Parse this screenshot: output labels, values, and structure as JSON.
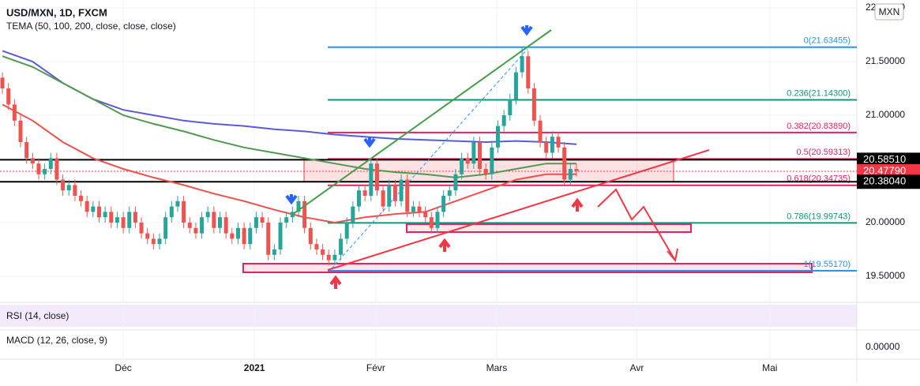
{
  "chart_data": {
    "type": "candlestick",
    "title": "USD/MXN, 1D, FXCM",
    "indicator_label": "TEMA (50, 100, 200, close, close, close)",
    "currency": "MXN",
    "rsi_label": "RSI (14, close)",
    "macd_label": "MACD (12, 26, close, 9)",
    "up_color": "#26a69a",
    "down_color": "#ef5350",
    "xlim": [
      -0.4,
      141.4
    ],
    "xticks": [
      {
        "value": 20,
        "label": "Déc"
      },
      {
        "value": 41.7,
        "label": "2021"
      },
      {
        "value": 61.8,
        "label": "Févr"
      },
      {
        "value": 81.8,
        "label": "Mars"
      },
      {
        "value": 105,
        "label": "Avr"
      },
      {
        "value": 127,
        "label": "Mai"
      }
    ],
    "ylim": [
      19.2647,
      22.0735
    ],
    "yticks": [
      {
        "value": 22,
        "label": "22.00000"
      },
      {
        "value": 21.5,
        "label": "21.50000"
      },
      {
        "value": 21,
        "label": "21.00000"
      },
      {
        "value": 20,
        "label": "20.00000"
      },
      {
        "value": 19.5,
        "label": "19.50000"
      }
    ],
    "macd_ticks": [
      {
        "value": 0,
        "label": "0.00000"
      }
    ],
    "grid": true,
    "candles": [
      [
        21.35,
        21.4,
        21.2,
        21.25
      ],
      [
        21.25,
        21.3,
        21.05,
        21.1
      ],
      [
        21.1,
        21.15,
        20.9,
        20.95
      ],
      [
        20.95,
        21.0,
        20.7,
        20.75
      ],
      [
        20.75,
        20.8,
        20.55,
        20.6
      ],
      [
        20.6,
        20.65,
        20.5,
        20.55
      ],
      [
        20.55,
        20.6,
        20.4,
        20.45
      ],
      [
        20.45,
        20.55,
        20.4,
        20.5
      ],
      [
        20.5,
        20.65,
        20.45,
        20.6
      ],
      [
        20.6,
        20.65,
        20.35,
        20.4
      ],
      [
        20.4,
        20.45,
        20.25,
        20.3
      ],
      [
        20.3,
        20.4,
        20.25,
        20.35
      ],
      [
        20.35,
        20.4,
        20.2,
        20.25
      ],
      [
        20.25,
        20.3,
        20.15,
        20.2
      ],
      [
        20.2,
        20.25,
        20.05,
        20.1
      ],
      [
        20.1,
        20.2,
        20.05,
        20.15
      ],
      [
        20.15,
        20.2,
        20.0,
        20.05
      ],
      [
        20.05,
        20.15,
        20.0,
        20.1
      ],
      [
        20.1,
        20.15,
        19.95,
        20.0
      ],
      [
        20.0,
        20.1,
        19.95,
        20.05
      ],
      [
        20.05,
        20.1,
        19.9,
        19.95
      ],
      [
        19.95,
        20.15,
        19.9,
        20.1
      ],
      [
        20.1,
        20.15,
        19.95,
        20.0
      ],
      [
        20.0,
        20.05,
        19.85,
        19.9
      ],
      [
        19.9,
        19.95,
        19.8,
        19.85
      ],
      [
        19.85,
        19.9,
        19.75,
        19.8
      ],
      [
        19.8,
        19.9,
        19.75,
        19.85
      ],
      [
        19.85,
        20.1,
        19.8,
        20.05
      ],
      [
        20.05,
        20.2,
        20.0,
        20.15
      ],
      [
        20.15,
        20.25,
        20.1,
        20.2
      ],
      [
        20.2,
        20.25,
        19.95,
        20.0
      ],
      [
        20.0,
        20.05,
        19.9,
        19.95
      ],
      [
        19.95,
        20.0,
        19.85,
        19.9
      ],
      [
        19.9,
        20.1,
        19.85,
        20.05
      ],
      [
        20.05,
        20.15,
        20.0,
        20.1
      ],
      [
        20.1,
        20.15,
        19.9,
        19.95
      ],
      [
        19.95,
        20.1,
        19.9,
        20.05
      ],
      [
        20.05,
        20.1,
        19.85,
        19.9
      ],
      [
        19.9,
        19.95,
        19.8,
        19.85
      ],
      [
        19.85,
        20.0,
        19.8,
        19.95
      ],
      [
        19.95,
        20.0,
        19.75,
        19.8
      ],
      [
        19.8,
        20.0,
        19.75,
        19.95
      ],
      [
        19.95,
        20.1,
        19.9,
        20.05
      ],
      [
        20.05,
        20.1,
        19.95,
        20.0
      ],
      [
        20.0,
        20.05,
        19.65,
        19.7
      ],
      [
        19.7,
        19.8,
        19.65,
        19.75
      ],
      [
        19.75,
        20.05,
        19.7,
        20.0
      ],
      [
        20.0,
        20.1,
        19.95,
        20.05
      ],
      [
        20.05,
        20.15,
        20.0,
        20.1
      ],
      [
        20.1,
        20.25,
        20.05,
        20.2
      ],
      [
        20.2,
        20.25,
        19.9,
        19.95
      ],
      [
        19.95,
        20.0,
        19.75,
        19.8
      ],
      [
        19.8,
        19.85,
        19.7,
        19.75
      ],
      [
        19.75,
        19.8,
        19.65,
        19.7
      ],
      [
        19.7,
        19.75,
        19.6,
        19.65
      ],
      [
        19.65,
        19.75,
        19.6,
        19.7
      ],
      [
        19.7,
        19.9,
        19.65,
        19.85
      ],
      [
        19.85,
        20.05,
        19.8,
        20.0
      ],
      [
        20.0,
        20.2,
        19.95,
        20.15
      ],
      [
        20.15,
        20.35,
        20.1,
        20.3
      ],
      [
        20.3,
        20.35,
        20.2,
        20.25
      ],
      [
        20.25,
        20.6,
        20.2,
        20.55
      ],
      [
        20.55,
        20.6,
        20.25,
        20.3
      ],
      [
        20.3,
        20.35,
        20.1,
        20.15
      ],
      [
        20.15,
        20.4,
        20.1,
        20.35
      ],
      [
        20.35,
        20.4,
        20.15,
        20.2
      ],
      [
        20.2,
        20.45,
        20.15,
        20.4
      ],
      [
        20.4,
        20.45,
        20.05,
        20.1
      ],
      [
        20.1,
        20.2,
        20.05,
        20.15
      ],
      [
        20.15,
        20.2,
        20.05,
        20.1
      ],
      [
        20.1,
        20.15,
        20.0,
        20.05
      ],
      [
        20.05,
        20.1,
        19.9,
        19.95
      ],
      [
        19.95,
        20.15,
        19.9,
        20.1
      ],
      [
        20.1,
        20.3,
        20.05,
        20.25
      ],
      [
        20.25,
        20.35,
        20.2,
        20.3
      ],
      [
        20.3,
        20.5,
        20.25,
        20.45
      ],
      [
        20.45,
        20.65,
        20.4,
        20.6
      ],
      [
        20.6,
        20.65,
        20.5,
        20.55
      ],
      [
        20.55,
        20.8,
        20.5,
        20.75
      ],
      [
        20.75,
        20.8,
        20.45,
        20.5
      ],
      [
        20.5,
        20.55,
        20.4,
        20.45
      ],
      [
        20.45,
        20.75,
        20.4,
        20.7
      ],
      [
        20.7,
        20.95,
        20.65,
        20.9
      ],
      [
        20.9,
        21.05,
        20.85,
        21.0
      ],
      [
        21.0,
        21.2,
        20.95,
        21.15
      ],
      [
        21.15,
        21.45,
        21.1,
        21.4
      ],
      [
        21.4,
        21.63,
        21.35,
        21.55
      ],
      [
        21.55,
        21.6,
        21.2,
        21.25
      ],
      [
        21.25,
        21.3,
        20.9,
        20.95
      ],
      [
        20.95,
        21.0,
        20.7,
        20.75
      ],
      [
        20.75,
        20.8,
        20.6,
        20.65
      ],
      [
        20.65,
        20.85,
        20.6,
        20.8
      ],
      [
        20.8,
        20.85,
        20.65,
        20.7
      ],
      [
        20.7,
        20.75,
        20.35,
        20.4
      ],
      [
        20.4,
        20.55,
        20.35,
        20.5
      ],
      [
        20.5,
        20.55,
        20.43,
        20.48
      ]
    ],
    "x": [
      0,
      5,
      10,
      15,
      20,
      25,
      30,
      35,
      40,
      45,
      50,
      55,
      60,
      65,
      70,
      75,
      80,
      85,
      90,
      95
    ],
    "series": [
      {
        "color": "#5b5bd6",
        "values": [
          21.6,
          21.5,
          21.3,
          21.15,
          21.05,
          21.0,
          20.95,
          20.92,
          20.9,
          20.87,
          20.85,
          20.82,
          20.8,
          20.78,
          20.77,
          20.76,
          20.75,
          20.76,
          20.75,
          20.73
        ]
      },
      {
        "color": "#4f9a4f",
        "values": [
          21.55,
          21.45,
          21.3,
          21.15,
          21.0,
          20.92,
          20.85,
          20.77,
          20.7,
          20.65,
          20.6,
          20.55,
          20.5,
          20.47,
          20.45,
          20.42,
          20.45,
          20.5,
          20.55,
          20.55
        ]
      },
      {
        "color": "#f0504a",
        "values": [
          21.1,
          20.95,
          20.75,
          20.6,
          20.5,
          20.42,
          20.35,
          20.27,
          20.2,
          20.12,
          20.05,
          20.0,
          20.05,
          20.08,
          20.1,
          20.2,
          20.3,
          20.4,
          20.45,
          20.45
        ]
      }
    ],
    "fib_levels": [
      {
        "value": 21.63455,
        "label": "0(21.63455)",
        "color": "#2196f3"
      },
      {
        "value": 21.143,
        "label": "0.236(21.14300)",
        "color": "#089981"
      },
      {
        "value": 20.8389,
        "label": "0.382(20.83890)",
        "color": "#e91e63"
      },
      {
        "value": 20.59313,
        "label": "0.5(20.59313)",
        "color": "#e91e63"
      },
      {
        "value": 20.34735,
        "label": "0.618(20.34735)",
        "color": "#e91e63"
      },
      {
        "value": 19.99743,
        "label": "0.786(19.99743)",
        "color": "#089981"
      },
      {
        "value": 19.5517,
        "label": "1(19.55170)",
        "color": "#2196f3"
      }
    ],
    "price_badges": [
      {
        "value": 20.5851,
        "label": "20.58510",
        "color": "#000000"
      },
      {
        "value": 20.4779,
        "label": "20.47790",
        "color": "#f23645"
      },
      {
        "value": 20.3804,
        "label": "20.38040",
        "color": "#000000"
      }
    ]
  }
}
